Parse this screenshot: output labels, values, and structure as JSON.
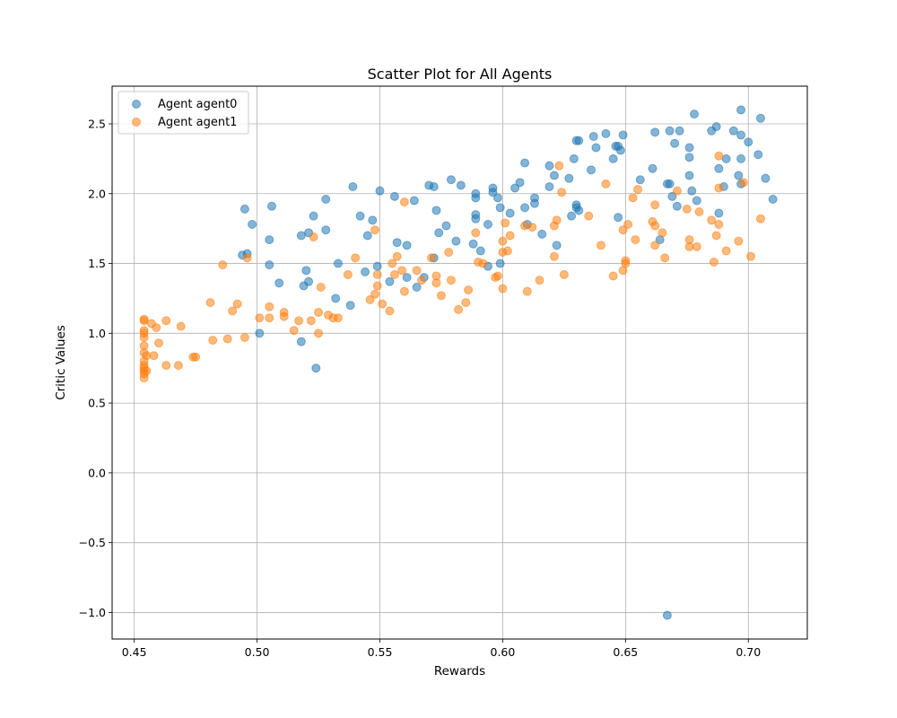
{
  "chart_data": {
    "type": "scatter",
    "title": "Scatter Plot for All Agents",
    "xlabel": "Rewards",
    "ylabel": "Critic Values",
    "xlim": [
      0.441,
      0.724
    ],
    "ylim": [
      -1.19,
      2.77
    ],
    "xticks": [
      0.45,
      0.5,
      0.55,
      0.6,
      0.65,
      0.7
    ],
    "xtick_labels": [
      "0.45",
      "0.50",
      "0.55",
      "0.60",
      "0.65",
      "0.70"
    ],
    "yticks": [
      -1.0,
      -0.5,
      0.0,
      0.5,
      1.0,
      1.5,
      2.0,
      2.5
    ],
    "ytick_labels": [
      "−1.0",
      "−0.5",
      "0.0",
      "0.5",
      "1.0",
      "1.5",
      "2.0",
      "2.5"
    ],
    "grid": true,
    "legend_position": "top-left",
    "series": [
      {
        "name": "Agent agent0",
        "color": "#1f77b4",
        "points": [
          [
            0.495,
            1.89
          ],
          [
            0.498,
            1.78
          ],
          [
            0.494,
            1.56
          ],
          [
            0.496,
            1.57
          ],
          [
            0.501,
            1.0
          ],
          [
            0.505,
            1.67
          ],
          [
            0.505,
            1.49
          ],
          [
            0.506,
            1.91
          ],
          [
            0.509,
            1.36
          ],
          [
            0.518,
            1.7
          ],
          [
            0.519,
            1.34
          ],
          [
            0.521,
            1.72
          ],
          [
            0.52,
            1.45
          ],
          [
            0.521,
            1.37
          ],
          [
            0.523,
            1.84
          ],
          [
            0.518,
            0.94
          ],
          [
            0.524,
            0.75
          ],
          [
            0.528,
            1.96
          ],
          [
            0.528,
            1.74
          ],
          [
            0.532,
            1.25
          ],
          [
            0.533,
            1.5
          ],
          [
            0.538,
            1.2
          ],
          [
            0.539,
            2.05
          ],
          [
            0.542,
            1.84
          ],
          [
            0.544,
            1.44
          ],
          [
            0.545,
            1.7
          ],
          [
            0.547,
            1.81
          ],
          [
            0.549,
            1.48
          ],
          [
            0.55,
            2.02
          ],
          [
            0.554,
            1.37
          ],
          [
            0.556,
            1.98
          ],
          [
            0.557,
            1.65
          ],
          [
            0.561,
            1.63
          ],
          [
            0.561,
            1.4
          ],
          [
            0.564,
            1.95
          ],
          [
            0.565,
            1.33
          ],
          [
            0.568,
            1.4
          ],
          [
            0.57,
            2.06
          ],
          [
            0.572,
            2.05
          ],
          [
            0.573,
            1.88
          ],
          [
            0.572,
            1.54
          ],
          [
            0.574,
            1.72
          ],
          [
            0.577,
            1.77
          ],
          [
            0.579,
            2.1
          ],
          [
            0.581,
            1.66
          ],
          [
            0.583,
            2.06
          ],
          [
            0.588,
            1.64
          ],
          [
            0.589,
            1.97
          ],
          [
            0.589,
            2.0
          ],
          [
            0.589,
            1.85
          ],
          [
            0.589,
            1.82
          ],
          [
            0.591,
            1.59
          ],
          [
            0.594,
            1.78
          ],
          [
            0.594,
            1.48
          ],
          [
            0.596,
            2.04
          ],
          [
            0.596,
            2.01
          ],
          [
            0.598,
            1.97
          ],
          [
            0.599,
            1.5
          ],
          [
            0.599,
            1.9
          ],
          [
            0.603,
            1.86
          ],
          [
            0.605,
            2.04
          ],
          [
            0.607,
            2.08
          ],
          [
            0.609,
            2.22
          ],
          [
            0.609,
            1.9
          ],
          [
            0.61,
            1.78
          ],
          [
            0.613,
            1.97
          ],
          [
            0.613,
            1.93
          ],
          [
            0.616,
            1.71
          ],
          [
            0.619,
            2.2
          ],
          [
            0.619,
            2.05
          ],
          [
            0.621,
            2.13
          ],
          [
            0.622,
            1.63
          ],
          [
            0.627,
            2.11
          ],
          [
            0.628,
            1.84
          ],
          [
            0.629,
            2.25
          ],
          [
            0.63,
            1.92
          ],
          [
            0.63,
            1.9
          ],
          [
            0.63,
            2.38
          ],
          [
            0.631,
            2.38
          ],
          [
            0.631,
            1.88
          ],
          [
            0.636,
            2.17
          ],
          [
            0.637,
            2.41
          ],
          [
            0.638,
            2.33
          ],
          [
            0.642,
            2.43
          ],
          [
            0.645,
            2.25
          ],
          [
            0.646,
            2.34
          ],
          [
            0.647,
            2.34
          ],
          [
            0.647,
            1.83
          ],
          [
            0.648,
            2.31
          ],
          [
            0.649,
            2.42
          ],
          [
            0.656,
            2.1
          ],
          [
            0.661,
            2.18
          ],
          [
            0.662,
            2.44
          ],
          [
            0.664,
            1.67
          ],
          [
            0.667,
            2.07
          ],
          [
            0.668,
            2.07
          ],
          [
            0.668,
            2.45
          ],
          [
            0.669,
            1.98
          ],
          [
            0.67,
            2.36
          ],
          [
            0.671,
            1.91
          ],
          [
            0.672,
            2.45
          ],
          [
            0.676,
            2.13
          ],
          [
            0.676,
            2.26
          ],
          [
            0.676,
            2.33
          ],
          [
            0.677,
            2.02
          ],
          [
            0.678,
            2.57
          ],
          [
            0.679,
            1.95
          ],
          [
            0.685,
            2.45
          ],
          [
            0.687,
            2.48
          ],
          [
            0.688,
            2.18
          ],
          [
            0.688,
            1.86
          ],
          [
            0.69,
            2.05
          ],
          [
            0.691,
            2.25
          ],
          [
            0.694,
            2.45
          ],
          [
            0.696,
            2.13
          ],
          [
            0.697,
            2.6
          ],
          [
            0.697,
            2.42
          ],
          [
            0.697,
            2.25
          ],
          [
            0.697,
            2.07
          ],
          [
            0.7,
            2.37
          ],
          [
            0.704,
            2.28
          ],
          [
            0.705,
            2.54
          ],
          [
            0.707,
            2.11
          ],
          [
            0.71,
            1.96
          ],
          [
            0.667,
            -1.02
          ]
        ]
      },
      {
        "name": "Agent agent1",
        "color": "#ff7f0e",
        "points": [
          [
            0.454,
            1.1
          ],
          [
            0.454,
            1.09
          ],
          [
            0.454,
            1.02
          ],
          [
            0.454,
            1.0
          ],
          [
            0.454,
            0.97
          ],
          [
            0.454,
            0.91
          ],
          [
            0.454,
            0.86
          ],
          [
            0.454,
            0.8
          ],
          [
            0.454,
            0.77
          ],
          [
            0.454,
            0.75
          ],
          [
            0.454,
            0.73
          ],
          [
            0.454,
            0.71
          ],
          [
            0.454,
            0.68
          ],
          [
            0.455,
            0.84
          ],
          [
            0.455,
            0.73
          ],
          [
            0.457,
            1.07
          ],
          [
            0.458,
            0.84
          ],
          [
            0.459,
            1.04
          ],
          [
            0.46,
            0.93
          ],
          [
            0.463,
            1.09
          ],
          [
            0.463,
            0.77
          ],
          [
            0.468,
            0.77
          ],
          [
            0.469,
            1.05
          ],
          [
            0.474,
            0.83
          ],
          [
            0.475,
            0.83
          ],
          [
            0.481,
            1.22
          ],
          [
            0.482,
            0.95
          ],
          [
            0.486,
            1.49
          ],
          [
            0.488,
            0.96
          ],
          [
            0.49,
            1.16
          ],
          [
            0.492,
            1.21
          ],
          [
            0.495,
            0.97
          ],
          [
            0.496,
            1.54
          ],
          [
            0.501,
            1.11
          ],
          [
            0.505,
            1.19
          ],
          [
            0.505,
            1.11
          ],
          [
            0.511,
            1.15
          ],
          [
            0.511,
            1.12
          ],
          [
            0.515,
            1.02
          ],
          [
            0.517,
            1.09
          ],
          [
            0.522,
            1.09
          ],
          [
            0.523,
            1.69
          ],
          [
            0.525,
            1.15
          ],
          [
            0.525,
            1.0
          ],
          [
            0.526,
            1.33
          ],
          [
            0.529,
            1.13
          ],
          [
            0.531,
            1.11
          ],
          [
            0.533,
            1.11
          ],
          [
            0.537,
            1.42
          ],
          [
            0.54,
            1.54
          ],
          [
            0.546,
            1.24
          ],
          [
            0.548,
            1.28
          ],
          [
            0.548,
            1.74
          ],
          [
            0.549,
            1.42
          ],
          [
            0.549,
            1.34
          ],
          [
            0.551,
            1.21
          ],
          [
            0.554,
            1.16
          ],
          [
            0.555,
            1.5
          ],
          [
            0.556,
            1.42
          ],
          [
            0.557,
            1.55
          ],
          [
            0.559,
            1.45
          ],
          [
            0.56,
            1.94
          ],
          [
            0.56,
            1.3
          ],
          [
            0.565,
            1.45
          ],
          [
            0.567,
            1.38
          ],
          [
            0.571,
            1.54
          ],
          [
            0.573,
            1.41
          ],
          [
            0.573,
            1.36
          ],
          [
            0.575,
            1.27
          ],
          [
            0.578,
            1.58
          ],
          [
            0.579,
            1.38
          ],
          [
            0.582,
            1.17
          ],
          [
            0.585,
            1.22
          ],
          [
            0.586,
            1.31
          ],
          [
            0.589,
            1.72
          ],
          [
            0.59,
            1.51
          ],
          [
            0.592,
            1.5
          ],
          [
            0.597,
            1.4
          ],
          [
            0.598,
            1.41
          ],
          [
            0.6,
            1.66
          ],
          [
            0.6,
            1.58
          ],
          [
            0.601,
            1.79
          ],
          [
            0.6,
            1.32
          ],
          [
            0.602,
            1.59
          ],
          [
            0.603,
            1.7
          ],
          [
            0.609,
            1.77
          ],
          [
            0.61,
            1.3
          ],
          [
            0.612,
            1.76
          ],
          [
            0.615,
            1.38
          ],
          [
            0.621,
            1.77
          ],
          [
            0.621,
            1.55
          ],
          [
            0.622,
            1.81
          ],
          [
            0.623,
            2.2
          ],
          [
            0.624,
            2.01
          ],
          [
            0.625,
            1.42
          ],
          [
            0.635,
            1.84
          ],
          [
            0.64,
            1.63
          ],
          [
            0.642,
            2.07
          ],
          [
            0.645,
            1.41
          ],
          [
            0.649,
            1.45
          ],
          [
            0.649,
            1.74
          ],
          [
            0.65,
            1.5
          ],
          [
            0.65,
            1.52
          ],
          [
            0.651,
            1.78
          ],
          [
            0.653,
            1.97
          ],
          [
            0.654,
            1.67
          ],
          [
            0.655,
            2.03
          ],
          [
            0.661,
            1.8
          ],
          [
            0.662,
            1.77
          ],
          [
            0.662,
            1.63
          ],
          [
            0.662,
            1.92
          ],
          [
            0.665,
            1.72
          ],
          [
            0.666,
            1.54
          ],
          [
            0.671,
            2.02
          ],
          [
            0.675,
            1.89
          ],
          [
            0.676,
            1.62
          ],
          [
            0.676,
            1.67
          ],
          [
            0.679,
            1.62
          ],
          [
            0.68,
            1.87
          ],
          [
            0.685,
            1.81
          ],
          [
            0.686,
            1.51
          ],
          [
            0.687,
            1.7
          ],
          [
            0.688,
            2.04
          ],
          [
            0.688,
            2.27
          ],
          [
            0.688,
            1.78
          ],
          [
            0.691,
            1.59
          ],
          [
            0.696,
            1.66
          ],
          [
            0.698,
            2.08
          ],
          [
            0.701,
            1.55
          ],
          [
            0.705,
            1.82
          ]
        ]
      }
    ]
  }
}
